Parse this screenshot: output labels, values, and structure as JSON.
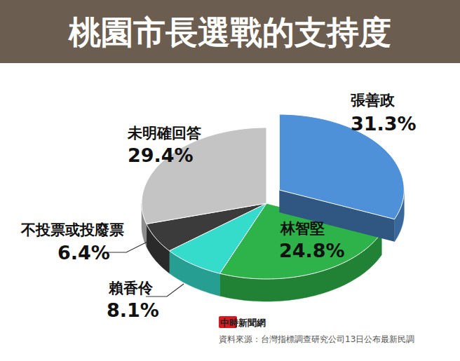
{
  "chart_data": {
    "type": "pie",
    "title": "桃園市長選戰的支持度",
    "categories": [
      "張善政",
      "林智堅",
      "賴香伶",
      "不投票或投廢票",
      "未明確回答"
    ],
    "values": [
      31.3,
      24.8,
      8.1,
      6.4,
      29.4
    ],
    "value_labels": [
      "31.3%",
      "24.8%",
      "8.1%",
      "6.4%",
      "29.4%"
    ],
    "colors": [
      "#4f91d8",
      "#2eb34a",
      "#36dccb",
      "#3b3b3b",
      "#c4c4c4"
    ],
    "data_labels": true,
    "logo": "中時新聞網",
    "source": "資料來源：台灣指標調查研究公司13日公布最新民調"
  }
}
